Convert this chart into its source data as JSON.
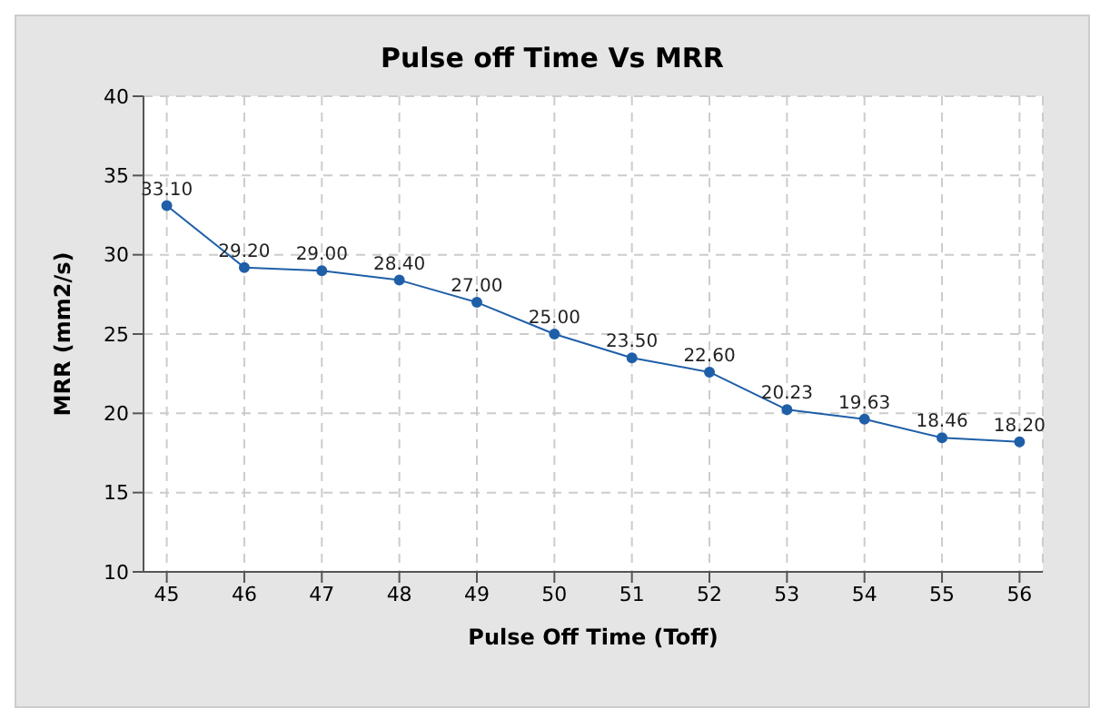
{
  "chart_data": {
    "type": "line",
    "title": "Pulse off Time Vs MRR",
    "xlabel": "Pulse Off Time (Toff)",
    "ylabel": "MRR (mm2/s)",
    "x": [
      45,
      46,
      47,
      48,
      49,
      50,
      51,
      52,
      53,
      54,
      55,
      56
    ],
    "values": [
      33.1,
      29.2,
      29.0,
      28.4,
      27.0,
      25.0,
      23.5,
      22.6,
      20.23,
      19.63,
      18.46,
      18.2
    ],
    "value_labels": [
      "33.10",
      "29.20",
      "29.00",
      "28.40",
      "27.00",
      "25.00",
      "23.50",
      "22.60",
      "20.23",
      "19.63",
      "18.46",
      "18.20"
    ],
    "color": "#1f5fa8",
    "marker": "circle",
    "line_style": "solid",
    "grid": true,
    "xlim": [
      44.7,
      56.3
    ],
    "xticks": [
      45,
      46,
      47,
      48,
      49,
      50,
      51,
      52,
      53,
      54,
      55,
      56
    ],
    "ylim": [
      10,
      40
    ],
    "yticks": [
      10,
      15,
      20,
      25,
      30,
      35,
      40
    ]
  }
}
